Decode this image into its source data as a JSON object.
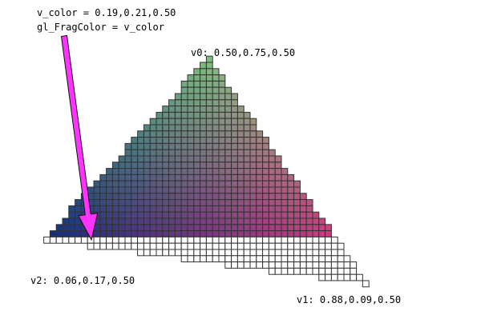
{
  "annotation": {
    "line1": "v_color = 0.19,0.21,0.50",
    "line2": "gl_FragColor = v_color"
  },
  "vertices": {
    "v0": {
      "label": "v0: 0.50,0.75,0.50",
      "color": [
        0.5,
        0.75,
        0.5
      ]
    },
    "v1": {
      "label": "v1: 0.88,0.09,0.50",
      "color": [
        0.88,
        0.09,
        0.5
      ]
    },
    "v2": {
      "label": "v2: 0.06,0.17,0.50",
      "color": [
        0.06,
        0.17,
        0.5
      ]
    }
  },
  "fragment_color": [
    0.19,
    0.21,
    0.5
  ],
  "colors": {
    "arrow": "#ff33ff",
    "arrow_outline": "#111111",
    "grid_line": "#333333",
    "unfilled_cell": "#ffffff",
    "text": "#000000"
  }
}
